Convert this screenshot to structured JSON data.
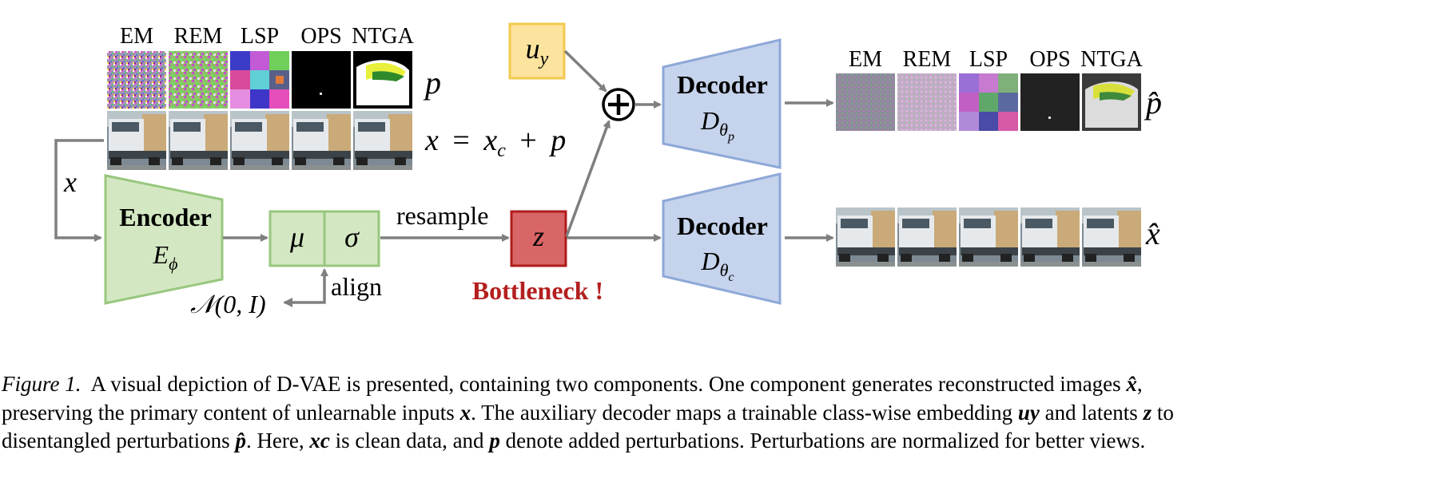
{
  "perturbation_labels": [
    "EM",
    "REM",
    "LSP",
    "OPS",
    "NTGA"
  ],
  "reconstructed_labels": [
    "EM",
    "REM",
    "LSP",
    "OPS",
    "NTGA"
  ],
  "row_labels": {
    "perturbation": "p",
    "input_eq_lhs": "x",
    "input_eq_eq": "=",
    "input_eq_xc": "x",
    "input_eq_c": "c",
    "input_eq_plus": "+",
    "input_eq_p": "p",
    "p_hat": "p̂",
    "x_hat": "x̂"
  },
  "input_label": "x",
  "encoder": {
    "title": "Encoder",
    "symbol": "E",
    "sub": "ϕ"
  },
  "latent": {
    "mu": "μ",
    "sigma": "σ"
  },
  "prior": {
    "text": "𝒩(0, I)",
    "align": "align"
  },
  "resample": "resample",
  "z": "z",
  "bottleneck": "Bottleneck !",
  "class_embedding": {
    "symbol": "u",
    "sub": "y"
  },
  "plus": "+",
  "decoder_p": {
    "title": "Decoder",
    "symbol": "D",
    "sub": "θ",
    "subsub": "p"
  },
  "decoder_c": {
    "title": "Decoder",
    "symbol": "D",
    "sub": "θ",
    "subsub": "c"
  },
  "colors": {
    "encoder_fill": "#d3e8c2",
    "encoder_stroke": "#98c77e",
    "decoder_fill": "#c5d3ec",
    "decoder_stroke": "#8ea8d8",
    "z_fill": "#d96666",
    "z_stroke": "#b01c1c",
    "u_fill": "#fde49e",
    "u_stroke": "#f2c94c",
    "bottleneck": "#b41f1f",
    "arrow": "#7f7f7f"
  },
  "caption": {
    "fig_label": "Figure 1.",
    "line1_text": "A visual depiction of D-VAE is presented, containing two components. One component generates reconstructed images",
    "line1_math": "x̂",
    "line1_end": ",",
    "line2_text": "preserving the primary content of unlearnable inputs",
    "line2_math1": "x",
    "line2_text2": ". The auxiliary decoder maps a trainable class-wise embedding",
    "line2_math2": "uy",
    "line2_text3": "and latents",
    "line2_math3": "z",
    "line2_text4": "to",
    "line3_text": "disentangled perturbations",
    "line3_math1": "p̂",
    "line3_text2": ". Here,",
    "line3_math2": "xc",
    "line3_text3": "is clean data, and",
    "line3_math3": "p",
    "line3_text4": "denote added perturbations. Perturbations are normalized for better views."
  }
}
